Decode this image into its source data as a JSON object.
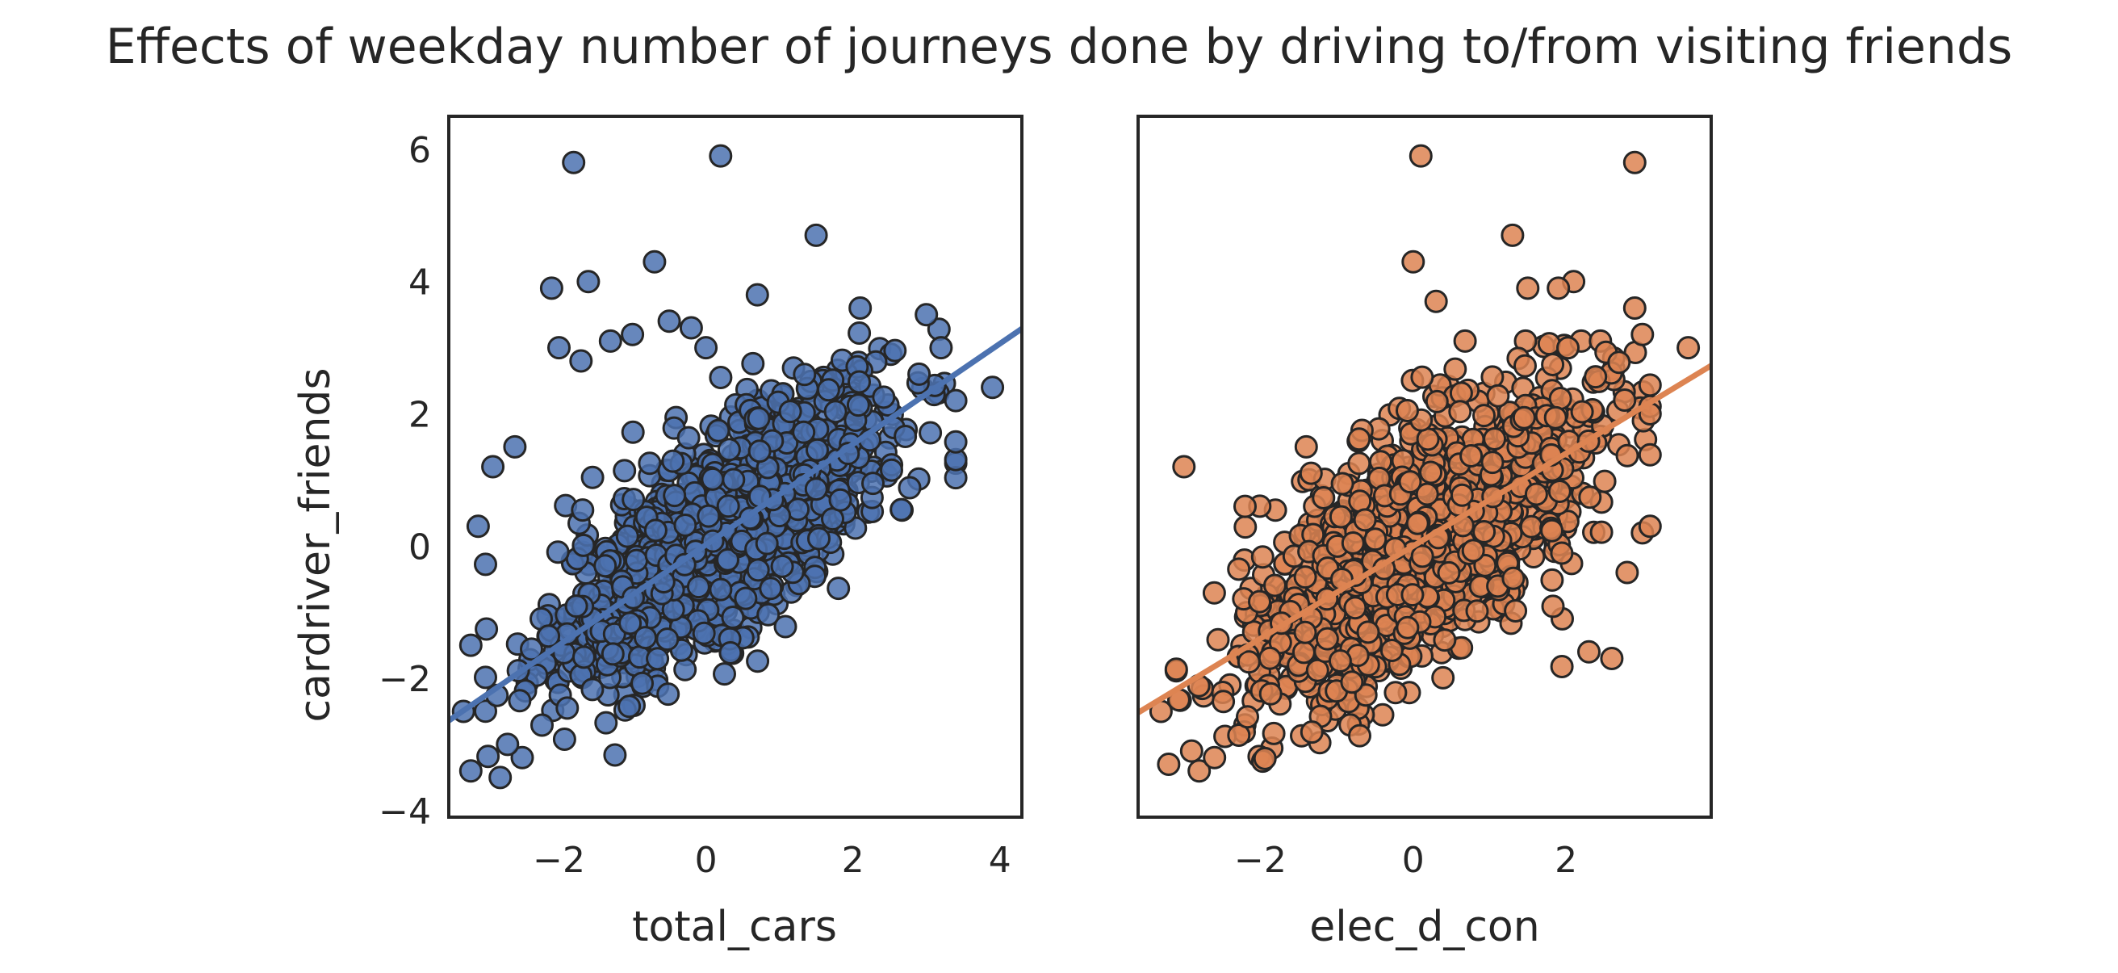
{
  "figure": {
    "title": "Effects of weekday number of journeys done by driving to/from visiting friends"
  },
  "chart_data": [
    {
      "type": "scatter",
      "xlabel": "total_cars",
      "ylabel": "cardriver_friends",
      "xlim": [
        -3.5,
        4.3
      ],
      "ylim": [
        -4.1,
        6.5
      ],
      "xticks": [
        -2,
        0,
        2,
        4
      ],
      "yticks": [
        -4,
        -2,
        0,
        2,
        4,
        6
      ],
      "grid": false,
      "color": "#4c72b0",
      "regression": {
        "slope": 0.76,
        "intercept": 0.02
      },
      "cloud": {
        "n": 1400,
        "x_mean": 0.2,
        "x_sd": 1.1,
        "x_range": [
          -3.0,
          3.4
        ],
        "resid_sd": 0.75,
        "y_range": [
          -3.4,
          3.3
        ]
      },
      "points": [
        [
          -1.8,
          5.8
        ],
        [
          0.2,
          5.9
        ],
        [
          1.5,
          4.7
        ],
        [
          -0.7,
          4.3
        ],
        [
          -2.1,
          3.9
        ],
        [
          -1.6,
          4.0
        ],
        [
          0.7,
          3.8
        ],
        [
          2.1,
          3.6
        ],
        [
          3.0,
          3.5
        ],
        [
          -0.5,
          3.4
        ],
        [
          -1.0,
          3.2
        ],
        [
          -1.3,
          3.1
        ],
        [
          -2.0,
          3.0
        ],
        [
          -1.7,
          2.8
        ],
        [
          -0.2,
          3.3
        ],
        [
          0.0,
          3.0
        ],
        [
          3.9,
          2.4
        ],
        [
          3.4,
          2.2
        ],
        [
          2.9,
          2.6
        ],
        [
          3.2,
          3.0
        ],
        [
          -3.1,
          0.3
        ],
        [
          -2.9,
          1.2
        ],
        [
          -2.6,
          1.5
        ],
        [
          -3.2,
          -1.5
        ],
        [
          -3.3,
          -2.5
        ],
        [
          -3.2,
          -3.4
        ],
        [
          -2.8,
          -3.5
        ],
        [
          -2.5,
          -3.2
        ],
        [
          -2.7,
          -3.0
        ]
      ]
    },
    {
      "type": "scatter",
      "xlabel": "elec_d_con",
      "ylabel": "",
      "xlim": [
        -3.6,
        3.9
      ],
      "ylim": [
        -4.1,
        6.5
      ],
      "xticks": [
        -2,
        0,
        2
      ],
      "yticks": [],
      "grid": false,
      "color": "#dd8452",
      "regression": {
        "slope": 0.7,
        "intercept": 0.0
      },
      "cloud": {
        "n": 1400,
        "x_mean": 0.0,
        "x_sd": 1.1,
        "x_range": [
          -3.1,
          3.1
        ],
        "resid_sd": 0.85,
        "y_range": [
          -3.6,
          3.1
        ]
      },
      "points": [
        [
          0.1,
          5.9
        ],
        [
          2.9,
          5.8
        ],
        [
          1.3,
          4.7
        ],
        [
          0.0,
          4.3
        ],
        [
          0.3,
          3.7
        ],
        [
          2.1,
          4.0
        ],
        [
          1.9,
          3.9
        ],
        [
          1.5,
          3.9
        ],
        [
          2.9,
          3.6
        ],
        [
          3.6,
          3.0
        ],
        [
          3.0,
          3.2
        ],
        [
          -3.0,
          1.2
        ],
        [
          -2.2,
          0.6
        ],
        [
          -1.4,
          1.5
        ],
        [
          3.1,
          2.0
        ],
        [
          3.0,
          0.2
        ],
        [
          3.1,
          0.3
        ],
        [
          2.8,
          -0.4
        ],
        [
          2.3,
          -1.6
        ],
        [
          2.6,
          -1.7
        ],
        [
          -3.3,
          -2.5
        ],
        [
          -3.2,
          -3.3
        ],
        [
          -2.8,
          -3.4
        ],
        [
          -2.6,
          -3.2
        ],
        [
          -2.9,
          -3.1
        ]
      ]
    }
  ]
}
